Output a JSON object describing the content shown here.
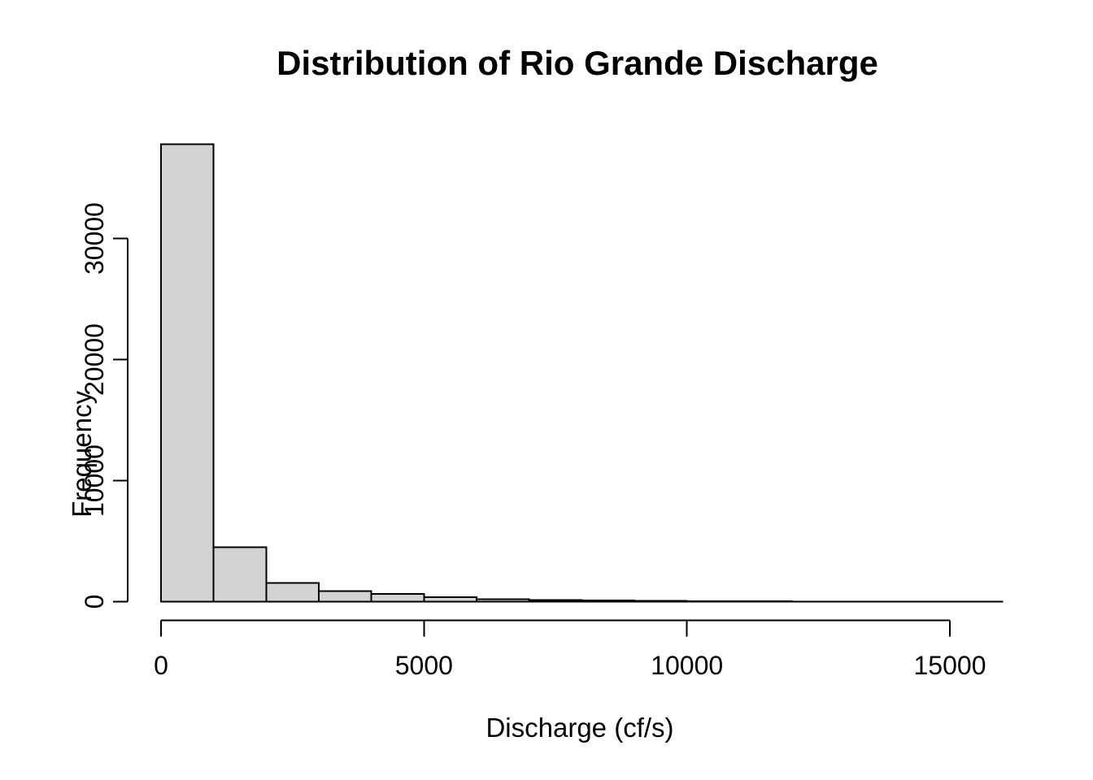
{
  "chart_data": {
    "type": "bar",
    "subtype": "histogram",
    "title": "Distribution of Rio Grande Discharge",
    "xlabel": "Discharge (cf/s)",
    "ylabel": "Frequency",
    "bin_edges": [
      0,
      1000,
      2000,
      3000,
      4000,
      5000,
      6000,
      7000,
      8000,
      9000,
      10000,
      11000,
      12000,
      13000,
      14000,
      15000,
      16000
    ],
    "values": [
      37800,
      4500,
      1550,
      870,
      640,
      380,
      210,
      130,
      100,
      60,
      40,
      25,
      15,
      10,
      5,
      2
    ],
    "xticks": [
      0,
      5000,
      10000,
      15000
    ],
    "xtick_labels": [
      "0",
      "5000",
      "10000",
      "15000"
    ],
    "yticks": [
      0,
      10000,
      20000,
      30000
    ],
    "ytick_labels": [
      "0",
      "10000",
      "20000",
      "30000"
    ],
    "xlim": [
      0,
      16000
    ],
    "ylim": [
      0,
      37800
    ],
    "grid": "off",
    "legend": "none",
    "bar_fill": "#d3d3d3",
    "bar_stroke": "#000000",
    "background": "#ffffff"
  }
}
